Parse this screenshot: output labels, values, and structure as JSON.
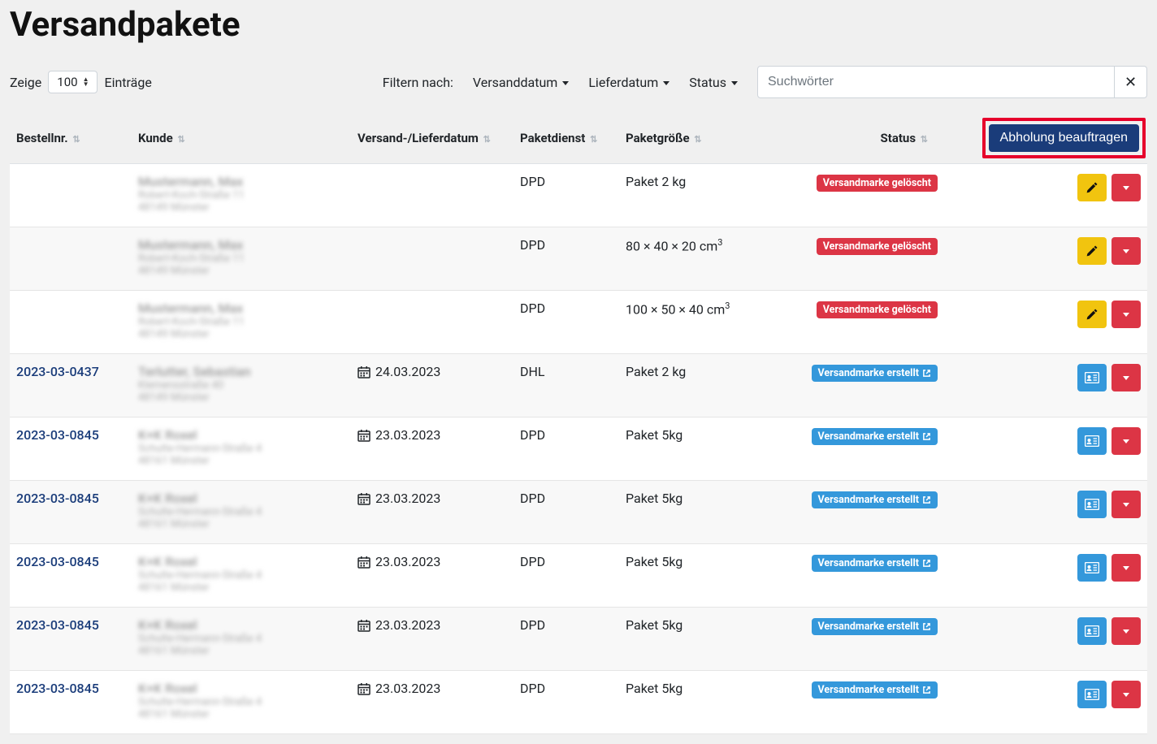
{
  "page": {
    "title": "Versandpakete"
  },
  "length": {
    "show_label": "Zeige",
    "value": "100",
    "entries_label": "Einträge"
  },
  "filters": {
    "label": "Filtern nach:",
    "shipping_date": "Versanddatum",
    "delivery_date": "Lieferdatum",
    "status": "Status"
  },
  "search": {
    "placeholder": "Suchwörter"
  },
  "columns": {
    "order": "Bestellnr.",
    "customer": "Kunde",
    "date": "Versand-/Lieferdatum",
    "carrier": "Paketdienst",
    "size": "Paketgröße",
    "status": "Status"
  },
  "pickup_button": "Abholung beauftragen",
  "status_labels": {
    "deleted": "Versandmarke gelöscht",
    "created": "Versandmarke erstellt"
  },
  "blurred": {
    "name1": "Mustermann, Max",
    "addr1a": "Robert-Koch-Straße 11",
    "addr1b": "48149 Münster",
    "name2": "Terlutter, Sebastian",
    "addr2a": "Klemensstraße 40",
    "addr2b": "48149 Münster",
    "name3": "K+K Roxel",
    "addr3a": "Schulte-Hermann-Straße 4",
    "addr3b": "48161 Münster"
  },
  "rows": [
    {
      "order": "",
      "customerKey": "1",
      "date": "",
      "carrier": "DPD",
      "size": "Paket 2 kg",
      "status": "deleted",
      "action": "edit"
    },
    {
      "order": "",
      "customerKey": "1",
      "date": "",
      "carrier": "DPD",
      "size_html": "80 × 40 × 20 cm<sup>3</sup>",
      "status": "deleted",
      "action": "edit"
    },
    {
      "order": "",
      "customerKey": "1",
      "date": "",
      "carrier": "DPD",
      "size_html": "100 × 50 × 40 cm<sup>3</sup>",
      "status": "deleted",
      "action": "edit"
    },
    {
      "order": "2023-03-0437",
      "customerKey": "2",
      "date": "24.03.2023",
      "carrier": "DHL",
      "size": "Paket 2 kg",
      "status": "created",
      "action": "card"
    },
    {
      "order": "2023-03-0845",
      "customerKey": "3",
      "date": "23.03.2023",
      "carrier": "DPD",
      "size": "Paket 5kg",
      "status": "created",
      "action": "card"
    },
    {
      "order": "2023-03-0845",
      "customerKey": "3",
      "date": "23.03.2023",
      "carrier": "DPD",
      "size": "Paket 5kg",
      "status": "created",
      "action": "card"
    },
    {
      "order": "2023-03-0845",
      "customerKey": "3",
      "date": "23.03.2023",
      "carrier": "DPD",
      "size": "Paket 5kg",
      "status": "created",
      "action": "card"
    },
    {
      "order": "2023-03-0845",
      "customerKey": "3",
      "date": "23.03.2023",
      "carrier": "DPD",
      "size": "Paket 5kg",
      "status": "created",
      "action": "card"
    },
    {
      "order": "2023-03-0845",
      "customerKey": "3",
      "date": "23.03.2023",
      "carrier": "DPD",
      "size": "Paket 5kg",
      "status": "created",
      "action": "card"
    }
  ]
}
